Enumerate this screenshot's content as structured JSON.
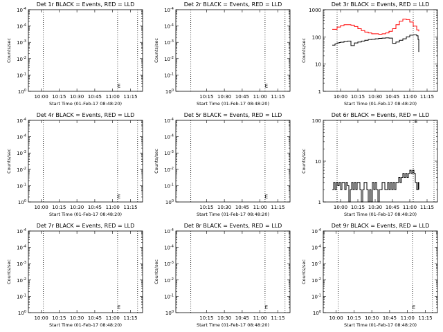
{
  "chart_data": [
    {
      "type": "line",
      "title": "Det 1r BLACK = Events, RED = LLD",
      "xlabel": "Start Time (01-Feb-17 08:48:20)",
      "ylabel": "Counts/sec",
      "yscale": "log",
      "ylim": [
        1,
        1000000
      ],
      "y_ticklabels": [
        "10^0",
        "10^-1",
        "10^-2",
        "10^-3",
        "10^-4",
        "10^-4"
      ],
      "x_ticklabels": [
        "10:00",
        "10:15",
        "10:30",
        "10:45",
        "11:00",
        "11:15"
      ],
      "xlim": [
        9.82,
        11.42
      ],
      "vlines": [
        10.03,
        11.07,
        11.35
      ],
      "series": [],
      "markers": [
        {
          "label": "E",
          "x": 11.05,
          "y": 3
        }
      ]
    },
    {
      "type": "line",
      "title": "Det 2r BLACK = Events, RED = LLD",
      "xlabel": "Start Time (01-Feb-17 08:48:20)",
      "ylabel": "Counts/sec",
      "yscale": "log",
      "ylim": [
        1,
        1000000
      ],
      "y_ticklabels": [
        "10^0",
        "10^-1",
        "10^-2",
        "10^-3",
        "10^-4",
        "10^-4"
      ],
      "x_ticklabels": [
        "10:15",
        "10:30",
        "10:45",
        "11:00",
        "11:15"
      ],
      "xlim": [
        9.82,
        11.42
      ],
      "vlines": [
        10.03,
        11.07,
        11.35
      ],
      "series": [],
      "markers": [
        {
          "label": "E",
          "x": 11.05,
          "y": 3
        }
      ]
    },
    {
      "type": "line",
      "title": "Det 3r BLACK = Events, RED = LLD",
      "xlabel": "Start Time (01-Feb-17 08:48:20)",
      "ylabel": "Counts/sec",
      "yscale": "log",
      "ylim": [
        1,
        1000
      ],
      "y_ticklabels": [
        "1",
        "10",
        "100",
        "1000"
      ],
      "x_ticklabels": [
        "10:00",
        "10:15",
        "10:30",
        "10:45",
        "11:00",
        "11:15"
      ],
      "xlim": [
        9.75,
        11.4
      ],
      "vlines": [
        9.95,
        11.05,
        11.35
      ],
      "series": [
        {
          "name": "BLACK = Events",
          "color": "#000000",
          "x": [
            9.88,
            9.9,
            9.92,
            9.95,
            9.98,
            10.0,
            10.05,
            10.1,
            10.15,
            10.2,
            10.25,
            10.3,
            10.35,
            10.4,
            10.45,
            10.5,
            10.55,
            10.6,
            10.65,
            10.7,
            10.75,
            10.8,
            10.85,
            10.9,
            10.95,
            11.0,
            11.05,
            11.1,
            11.12,
            11.13
          ],
          "y": [
            50,
            50,
            55,
            60,
            62,
            64,
            68,
            70,
            48,
            60,
            65,
            70,
            75,
            80,
            82,
            85,
            88,
            90,
            92,
            90,
            58,
            65,
            75,
            85,
            100,
            115,
            120,
            110,
            80,
            28
          ]
        },
        {
          "name": "RED = LLD",
          "color": "#ff0000",
          "x": [
            9.88,
            9.95,
            10.0,
            10.05,
            10.1,
            10.15,
            10.2,
            10.25,
            10.3,
            10.35,
            10.4,
            10.45,
            10.5,
            10.55,
            10.6,
            10.65,
            10.7,
            10.75,
            10.8,
            10.85,
            10.9,
            10.95,
            11.0,
            11.05,
            11.1,
            11.13
          ],
          "y": [
            190,
            230,
            260,
            280,
            280,
            270,
            240,
            200,
            170,
            150,
            140,
            130,
            130,
            125,
            130,
            140,
            160,
            200,
            280,
            380,
            450,
            430,
            350,
            250,
            180,
            160
          ]
        }
      ],
      "markers": []
    },
    {
      "type": "line",
      "title": "Det 4r BLACK = Events, RED = LLD",
      "xlabel": "Start Time (01-Feb-17 08:48:20)",
      "ylabel": "Counts/sec",
      "yscale": "log",
      "ylim": [
        1,
        1000000
      ],
      "y_ticklabels": [
        "10^0",
        "10^-1",
        "10^-2",
        "10^-3",
        "10^-4",
        "10^-4"
      ],
      "x_ticklabels": [
        "10:00",
        "10:15",
        "10:30",
        "10:45",
        "11:00",
        "11:15"
      ],
      "xlim": [
        9.82,
        11.42
      ],
      "vlines": [
        10.03,
        11.07,
        11.35
      ],
      "series": [],
      "markers": [
        {
          "label": "E",
          "x": 11.05,
          "y": 3
        }
      ]
    },
    {
      "type": "line",
      "title": "Det 5r BLACK = Events, RED = LLD",
      "xlabel": "Start Time (01-Feb-17 08:48:20)",
      "ylabel": "Counts/sec",
      "yscale": "log",
      "ylim": [
        1,
        1000000
      ],
      "y_ticklabels": [
        "10^0",
        "10^-1",
        "10^-2",
        "10^-3",
        "10^-4",
        "10^-4"
      ],
      "x_ticklabels": [
        "10:15",
        "10:30",
        "10:45",
        "11:00",
        "11:15"
      ],
      "xlim": [
        9.82,
        11.42
      ],
      "vlines": [
        10.03,
        11.07,
        11.35
      ],
      "series": [],
      "markers": [
        {
          "label": "E",
          "x": 11.05,
          "y": 3
        }
      ]
    },
    {
      "type": "line",
      "title": "Det 6r BLACK = Events, RED = LLD",
      "xlabel": "Start Time (01-Feb-17 08:48:20)",
      "ylabel": "Counts/sec",
      "yscale": "log",
      "ylim": [
        1,
        100
      ],
      "y_ticklabels": [
        "1",
        "10",
        "100"
      ],
      "x_ticklabels": [
        "10:00",
        "10:15",
        "10:30",
        "10:45",
        "11:00",
        "11:15"
      ],
      "xlim": [
        9.75,
        11.4
      ],
      "vlines": [
        9.95,
        11.05,
        11.35
      ],
      "series": [
        {
          "name": "BLACK = Events",
          "color": "#000000",
          "x": [
            9.88,
            9.9,
            9.92,
            9.94,
            9.96,
            9.98,
            10.0,
            10.02,
            10.04,
            10.06,
            10.08,
            10.1,
            10.12,
            10.14,
            10.16,
            10.18,
            10.2,
            10.22,
            10.24,
            10.26,
            10.28,
            10.3,
            10.32,
            10.34,
            10.36,
            10.38,
            10.4,
            10.42,
            10.44,
            10.46,
            10.48,
            10.5,
            10.52,
            10.54,
            10.56,
            10.58,
            10.6,
            10.62,
            10.64,
            10.66,
            10.68,
            10.7,
            10.72,
            10.74,
            10.76,
            10.78,
            10.8,
            10.82,
            10.84,
            10.86,
            10.88,
            10.9,
            10.92,
            10.94,
            10.96,
            10.98,
            11.0,
            11.02,
            11.04,
            11.06,
            11.08,
            11.1,
            11.12,
            11.13
          ],
          "y": [
            2,
            3,
            2,
            3,
            2.5,
            3,
            2,
            3,
            3,
            2,
            3,
            2.5,
            1,
            2,
            3,
            2,
            3,
            2,
            3,
            3,
            2,
            1,
            2,
            3,
            3,
            2,
            1,
            2,
            1,
            3,
            2,
            3,
            2,
            1,
            2,
            2,
            3,
            3,
            2,
            2,
            3,
            2,
            3,
            2,
            3,
            2,
            3,
            3,
            4,
            3,
            4,
            5,
            4,
            5,
            4,
            5,
            6,
            5,
            6,
            5,
            3,
            2,
            3,
            2
          ]
        }
      ],
      "markers": [
        {
          "label": "E",
          "x": 11.05,
          "y": 100
        }
      ]
    },
    {
      "type": "line",
      "title": "Det 7r BLACK = Events, RED = LLD",
      "xlabel": "Start Time (01-Feb-17 08:48:20)",
      "ylabel": "Counts/sec",
      "yscale": "log",
      "ylim": [
        1,
        1000000
      ],
      "y_ticklabels": [
        "10^0",
        "10^-1",
        "10^-2",
        "10^-3",
        "10^-4",
        "10^-4"
      ],
      "x_ticklabels": [
        "10:00",
        "10:15",
        "10:30",
        "10:45",
        "11:00",
        "11:15"
      ],
      "xlim": [
        9.82,
        11.42
      ],
      "vlines": [
        10.03,
        11.07,
        11.35
      ],
      "series": [],
      "markers": [
        {
          "label": "E",
          "x": 11.05,
          "y": 3
        }
      ]
    },
    {
      "type": "line",
      "title": "Det 8r BLACK = Events, RED = LLD",
      "xlabel": "Start Time (01-Feb-17 08:48:20)",
      "ylabel": "Counts/sec",
      "yscale": "log",
      "ylim": [
        1,
        1000000
      ],
      "y_ticklabels": [
        "10^0",
        "10^-1",
        "10^-2",
        "10^-3",
        "10^-4",
        "10^-4"
      ],
      "x_ticklabels": [
        "10:15",
        "10:30",
        "10:45",
        "11:00",
        "11:15"
      ],
      "xlim": [
        9.82,
        11.42
      ],
      "vlines": [
        10.03,
        11.07,
        11.35
      ],
      "series": [],
      "markers": [
        {
          "label": "E",
          "x": 11.05,
          "y": 3
        }
      ]
    },
    {
      "type": "line",
      "title": "Det 9r BLACK = Events, RED = LLD",
      "xlabel": "Start Time (01-Feb-17 08:48:20)",
      "ylabel": "Counts/sec",
      "yscale": "log",
      "ylim": [
        1,
        1000000
      ],
      "y_ticklabels": [
        "10^0",
        "10^-1",
        "10^-2",
        "10^-3",
        "10^-4",
        "10^-4"
      ],
      "x_ticklabels": [
        "10:00",
        "10:15",
        "10:30",
        "10:45",
        "11:00",
        "11:15"
      ],
      "xlim": [
        9.82,
        11.42
      ],
      "vlines": [
        10.03,
        11.07,
        11.35
      ],
      "series": [],
      "markers": [
        {
          "label": "E",
          "x": 11.05,
          "y": 3
        }
      ]
    }
  ]
}
